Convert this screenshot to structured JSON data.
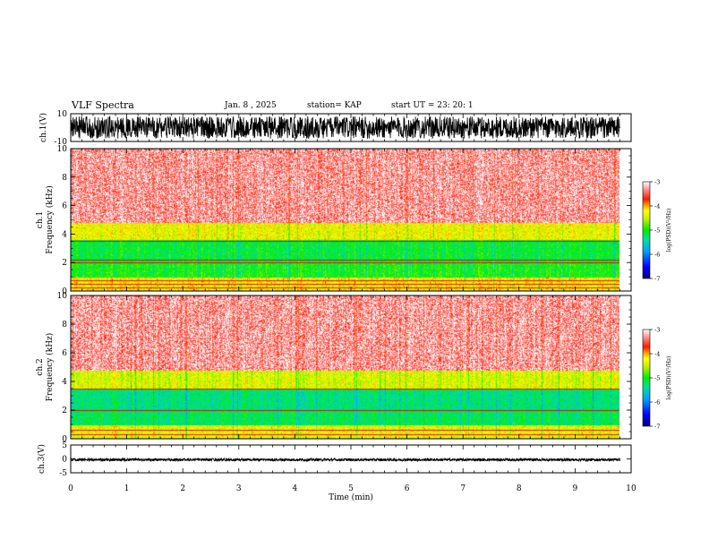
{
  "header": {
    "title": "VLF Spectra",
    "date": "Jan. 8 , 2025",
    "station": "station= KAP",
    "start": "start UT =  23: 20: 1"
  },
  "colors": {
    "low": "#000080",
    "mid": "#00e000",
    "mid_high": "#ffff00",
    "high": "#ff0000",
    "top": "#ffffff"
  },
  "chart_data": [
    {
      "type": "line",
      "name": "ch1-waveform",
      "ylabel": "ch.1(V)",
      "ylim": [
        -10,
        10
      ],
      "yticks": [
        "10",
        "-10"
      ],
      "xlim": [
        0,
        10
      ],
      "description_range": "signal spans approximately -8 to 8 V"
    },
    {
      "type": "heatmap",
      "name": "ch1-spectrogram",
      "ylabel": "ch.1",
      "ylabel2": "Frequency (kHz)",
      "ylim": [
        0,
        10
      ],
      "yticks": [
        "0",
        "2",
        "4",
        "6",
        "8",
        "10"
      ],
      "xlim": [
        0,
        10
      ],
      "data_extent_min": 9.8,
      "bands": [
        {
          "from": 0.0,
          "to": 1.0,
          "level": -4.2
        },
        {
          "from": 1.0,
          "to": 2.0,
          "level": -5.0
        },
        {
          "from": 2.0,
          "to": 3.6,
          "level": -5.1
        },
        {
          "from": 3.6,
          "to": 4.8,
          "level": -4.3
        },
        {
          "from": 4.8,
          "to": 10.0,
          "level": -3.4
        }
      ],
      "lines_khz": [
        0.25,
        0.5,
        0.75,
        2.0,
        2.2,
        3.5
      ]
    },
    {
      "type": "heatmap",
      "name": "ch2-spectrogram",
      "ylabel": "ch.2",
      "ylabel2": "Frequency (kHz)",
      "ylim": [
        0,
        10
      ],
      "yticks": [
        "0",
        "2",
        "4",
        "6",
        "8",
        "10"
      ],
      "xlim": [
        0,
        10
      ],
      "data_extent_min": 9.8,
      "bands": [
        {
          "from": 0.0,
          "to": 1.0,
          "level": -4.3
        },
        {
          "from": 1.0,
          "to": 2.0,
          "level": -5.2
        },
        {
          "from": 2.0,
          "to": 3.5,
          "level": -5.3
        },
        {
          "from": 3.5,
          "to": 4.8,
          "level": -4.4
        },
        {
          "from": 4.8,
          "to": 10.0,
          "level": -3.4
        }
      ],
      "lines_khz": [
        0.3,
        0.6,
        2.0,
        3.5
      ]
    },
    {
      "type": "line",
      "name": "ch3-waveform",
      "ylabel": "ch.3(V)",
      "ylim": [
        -5,
        5
      ],
      "yticks": [
        "5",
        "0",
        "-5"
      ],
      "xlim": [
        0,
        10
      ],
      "xlabel": "Time (min)",
      "xticks": [
        "0",
        "1",
        "2",
        "3",
        "4",
        "5",
        "6",
        "7",
        "8",
        "9",
        "10"
      ],
      "description_range": "signal spans approximately -0.8 to 0.2 V"
    },
    {
      "type": "colorbar",
      "label": "log(PSD)(V²/Hz)",
      "range": [
        -7,
        -3
      ],
      "ticks": [
        "-3",
        "-4",
        "-5",
        "-6",
        "-7"
      ]
    }
  ]
}
